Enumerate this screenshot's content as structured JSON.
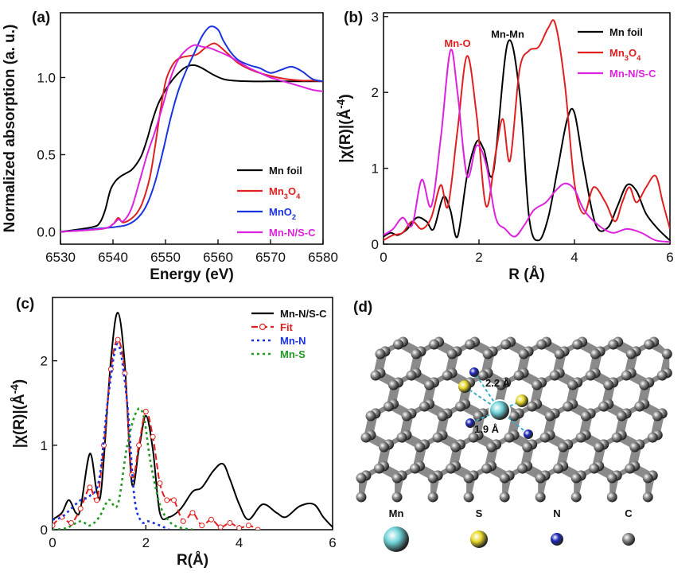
{
  "panels": {
    "a": "(a)",
    "b": "(b)",
    "c": "(c)",
    "d": "(d)"
  },
  "chart_data": [
    {
      "id": "a",
      "type": "line",
      "xlabel": "Energy (eV)",
      "ylabel": "Normalized absorption (a. u.)",
      "xlim": [
        6530,
        6580
      ],
      "ylim": [
        -0.08,
        1.42
      ],
      "xticks": [
        6530,
        6540,
        6550,
        6560,
        6570,
        6580
      ],
      "yticks": [
        0.0,
        0.5,
        1.0
      ],
      "ytick_labels": [
        "0.0",
        "0.5",
        "1.0"
      ],
      "legend_position": "bottom-right",
      "series": [
        {
          "name": "Mn foil",
          "color": "#000000",
          "x": [
            6530,
            6536,
            6537.5,
            6538.5,
            6539.5,
            6540.5,
            6541.5,
            6542.5,
            6543.5,
            6544.5,
            6545.5,
            6546.5,
            6547.5,
            6548.5,
            6549.5,
            6551,
            6552.5,
            6554,
            6555.5,
            6557,
            6559,
            6561,
            6563,
            6566,
            6570,
            6575,
            6580
          ],
          "y": [
            0.0,
            0.03,
            0.06,
            0.14,
            0.27,
            0.33,
            0.36,
            0.38,
            0.4,
            0.44,
            0.5,
            0.6,
            0.72,
            0.82,
            0.89,
            0.97,
            1.03,
            1.07,
            1.08,
            1.06,
            1.02,
            0.99,
            0.98,
            0.975,
            0.975,
            0.975,
            0.975
          ]
        },
        {
          "name": "Mn₃O₄",
          "color": "#e02020",
          "x": [
            6530,
            6538,
            6540,
            6541,
            6542,
            6544,
            6545.5,
            6547,
            6548,
            6549,
            6550,
            6551,
            6552,
            6553,
            6554.5,
            6556,
            6557.5,
            6559,
            6560,
            6562,
            6564,
            6567,
            6570,
            6573,
            6576,
            6578,
            6580
          ],
          "y": [
            0.0,
            0.02,
            0.05,
            0.09,
            0.06,
            0.1,
            0.18,
            0.35,
            0.55,
            0.78,
            0.97,
            1.06,
            1.11,
            1.13,
            1.14,
            1.15,
            1.19,
            1.22,
            1.21,
            1.15,
            1.09,
            1.04,
            1.01,
            0.99,
            0.98,
            0.98,
            0.975
          ]
        },
        {
          "name": "MnO₂",
          "color": "#1a33e0",
          "x": [
            6530,
            6540,
            6543,
            6545,
            6546.5,
            6548,
            6549.5,
            6551,
            6552.5,
            6554,
            6555.5,
            6557,
            6558.5,
            6560,
            6561,
            6562.5,
            6564,
            6566,
            6568,
            6570,
            6572,
            6574,
            6576,
            6578,
            6580
          ],
          "y": [
            0.0,
            0.03,
            0.05,
            0.1,
            0.18,
            0.32,
            0.52,
            0.74,
            0.92,
            1.05,
            1.16,
            1.27,
            1.33,
            1.31,
            1.24,
            1.16,
            1.11,
            1.08,
            1.06,
            1.03,
            1.05,
            1.07,
            1.04,
            0.99,
            0.975
          ]
        },
        {
          "name": "Mn-N/S-C",
          "color": "#dd22dd",
          "x": [
            6530,
            6538,
            6540,
            6541,
            6542,
            6543.5,
            6545,
            6546.5,
            6548,
            6549.5,
            6551,
            6552.5,
            6554,
            6555.5,
            6557,
            6558.5,
            6560,
            6562,
            6564,
            6566,
            6568,
            6570,
            6572,
            6574,
            6576,
            6578,
            6580
          ],
          "y": [
            0.0,
            0.02,
            0.05,
            0.08,
            0.07,
            0.15,
            0.32,
            0.5,
            0.65,
            0.82,
            1.0,
            1.12,
            1.18,
            1.21,
            1.2,
            1.19,
            1.17,
            1.14,
            1.1,
            1.06,
            1.03,
            1.0,
            0.98,
            0.96,
            0.94,
            0.92,
            0.91
          ]
        }
      ]
    },
    {
      "id": "b",
      "type": "line",
      "xlabel": "R (Å)",
      "ylabel": "|χ(R)|(Å⁻⁴)",
      "xlim": [
        0,
        6
      ],
      "ylim": [
        0,
        3.05
      ],
      "xticks": [
        0,
        2,
        4,
        6
      ],
      "yticks": [
        0,
        1,
        2,
        3
      ],
      "legend_position": "top-right",
      "annotations": [
        "Mn-O",
        "Mn-Mn"
      ],
      "series": [
        {
          "name": "Mn foil",
          "color": "#000000",
          "x": [
            0,
            0.15,
            0.3,
            0.5,
            0.7,
            0.9,
            1.05,
            1.25,
            1.4,
            1.55,
            1.75,
            1.95,
            2.1,
            2.3,
            2.6,
            2.85,
            3.05,
            3.25,
            3.45,
            3.65,
            3.85,
            4.0,
            4.2,
            4.45,
            4.7,
            4.9,
            5.1,
            5.3,
            5.5,
            5.75,
            6.0
          ],
          "y": [
            0.1,
            0.15,
            0.12,
            0.2,
            0.35,
            0.3,
            0.2,
            0.62,
            0.45,
            0.1,
            0.9,
            1.35,
            1.25,
            0.95,
            2.65,
            2.0,
            0.35,
            0.05,
            0.35,
            1.0,
            1.65,
            1.73,
            1.0,
            0.25,
            0.22,
            0.5,
            0.78,
            0.7,
            0.4,
            0.2,
            0.05
          ]
        },
        {
          "name": "Mn₃O₄",
          "color": "#e02020",
          "x": [
            0,
            0.2,
            0.4,
            0.6,
            0.8,
            1.0,
            1.2,
            1.35,
            1.55,
            1.75,
            1.95,
            2.15,
            2.35,
            2.5,
            2.65,
            2.85,
            3.05,
            3.25,
            3.45,
            3.6,
            3.8,
            4.0,
            4.2,
            4.4,
            4.65,
            4.85,
            5.0,
            5.15,
            5.3,
            5.5,
            5.7,
            5.85,
            6.0
          ],
          "y": [
            0.05,
            0.12,
            0.15,
            0.3,
            0.2,
            0.35,
            0.78,
            0.5,
            1.5,
            2.48,
            1.7,
            0.5,
            1.2,
            1.65,
            1.1,
            2.3,
            2.55,
            2.6,
            2.85,
            2.9,
            2.1,
            0.8,
            0.4,
            0.75,
            0.55,
            0.3,
            0.55,
            0.75,
            0.55,
            0.75,
            0.9,
            0.55,
            0.2
          ]
        },
        {
          "name": "Mn-N/S-C",
          "color": "#dd22dd",
          "x": [
            0,
            0.2,
            0.4,
            0.6,
            0.8,
            1.0,
            1.2,
            1.4,
            1.55,
            1.75,
            1.95,
            2.15,
            2.35,
            2.55,
            2.75,
            2.95,
            3.15,
            3.4,
            3.6,
            3.8,
            4.0,
            4.2,
            4.5,
            4.8,
            5.1,
            5.4,
            5.7,
            6.0
          ],
          "y": [
            0.12,
            0.2,
            0.35,
            0.25,
            0.85,
            0.5,
            1.4,
            2.55,
            2.0,
            0.9,
            1.3,
            1.05,
            0.35,
            0.2,
            0.1,
            0.25,
            0.45,
            0.55,
            0.7,
            0.8,
            0.72,
            0.45,
            0.25,
            0.15,
            0.2,
            0.15,
            0.05,
            0.03
          ]
        }
      ]
    },
    {
      "id": "c",
      "type": "line",
      "xlabel": "R(Å)",
      "ylabel": "|χ(R)|(Å⁻⁴)",
      "xlim": [
        0,
        6
      ],
      "ylim": [
        0,
        2.75
      ],
      "xticks": [
        0,
        2,
        4,
        6
      ],
      "yticks": [
        0,
        1,
        2
      ],
      "legend_position": "top-right",
      "series": [
        {
          "name": "Mn-N/S-C",
          "color": "#000000",
          "style": "solid",
          "x": [
            0,
            0.2,
            0.35,
            0.5,
            0.6,
            0.8,
            0.95,
            1.05,
            1.25,
            1.4,
            1.55,
            1.7,
            1.85,
            2.0,
            2.15,
            2.3,
            2.5,
            2.75,
            3.0,
            3.2,
            3.45,
            3.65,
            3.8,
            4.0,
            4.2,
            4.5,
            4.8,
            5.0,
            5.3,
            5.6,
            5.8,
            6.0
          ],
          "y": [
            0.12,
            0.2,
            0.35,
            0.2,
            0.25,
            0.9,
            0.45,
            0.5,
            2.0,
            2.57,
            1.95,
            0.55,
            0.95,
            1.35,
            0.95,
            0.2,
            0.15,
            0.25,
            0.45,
            0.5,
            0.7,
            0.78,
            0.6,
            0.3,
            0.12,
            0.3,
            0.2,
            0.15,
            0.28,
            0.3,
            0.15,
            0.03
          ]
        },
        {
          "name": "Fit",
          "color": "#e02020",
          "style": "dash-circle",
          "x": [
            0,
            0.2,
            0.4,
            0.6,
            0.8,
            0.95,
            1.1,
            1.25,
            1.4,
            1.55,
            1.7,
            1.85,
            2.0,
            2.15,
            2.3,
            2.45,
            2.6,
            2.8,
            3.0,
            3.2,
            3.4,
            3.6,
            3.8,
            4.0,
            4.2,
            4.4
          ],
          "y": [
            0.05,
            0.15,
            0.08,
            0.25,
            0.5,
            0.35,
            1.0,
            1.9,
            2.25,
            1.85,
            0.65,
            1.0,
            1.4,
            1.1,
            0.55,
            0.35,
            0.35,
            0.1,
            0.2,
            0.05,
            0.12,
            0.03,
            0.08,
            0.02,
            0.05,
            0.0
          ]
        },
        {
          "name": "Mn-N",
          "color": "#1a33e0",
          "style": "dotted",
          "x": [
            0,
            0.2,
            0.4,
            0.6,
            0.8,
            1.0,
            1.2,
            1.4,
            1.6,
            1.75,
            1.9,
            2.05,
            2.3,
            2.5
          ],
          "y": [
            0.12,
            0.15,
            0.25,
            0.35,
            0.4,
            0.6,
            1.6,
            2.2,
            1.5,
            0.4,
            0.1,
            0.1,
            0.05,
            0.0
          ]
        },
        {
          "name": "Mn-S",
          "color": "#229922",
          "style": "dotted",
          "x": [
            0,
            0.3,
            0.6,
            0.8,
            1.0,
            1.2,
            1.4,
            1.6,
            1.8,
            1.95,
            2.1,
            2.3,
            2.5,
            2.7,
            3.0
          ],
          "y": [
            0.0,
            0.02,
            0.1,
            0.05,
            0.15,
            0.35,
            0.3,
            1.0,
            1.4,
            1.35,
            0.8,
            0.3,
            0.1,
            0.03,
            0.0
          ]
        }
      ]
    }
  ],
  "structure": {
    "bond_labels": [
      "2.2 Å",
      "1.9 Å"
    ],
    "atom_legend": [
      {
        "label": "Mn",
        "color": "#6fd3d8"
      },
      {
        "label": "S",
        "color": "#e8d82a"
      },
      {
        "label": "N",
        "color": "#1e2ab8"
      },
      {
        "label": "C",
        "color": "#888888"
      }
    ]
  }
}
